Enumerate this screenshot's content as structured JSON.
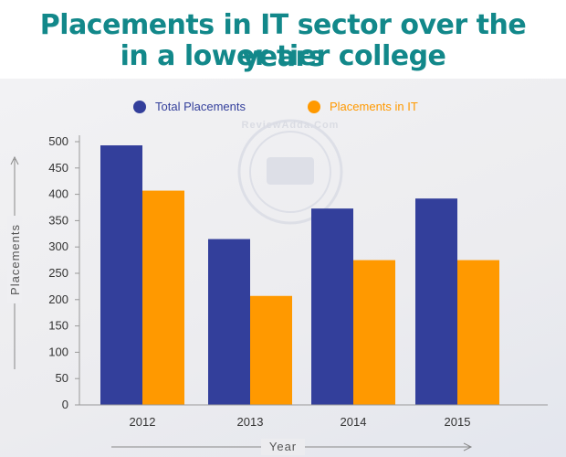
{
  "chart_data": {
    "type": "bar",
    "title_lines": [
      "Placements  in IT sector over the years",
      "in a lower tier college"
    ],
    "categories": [
      "2012",
      "2013",
      "2014",
      "2015"
    ],
    "series": [
      {
        "name": "Total Placements",
        "values": [
          493,
          315,
          373,
          392
        ],
        "color": "#333f9b"
      },
      {
        "name": "Placements in IT",
        "values": [
          407,
          207,
          275,
          275
        ],
        "color": "#ff9900"
      }
    ],
    "xlabel": "Year",
    "ylabel": "Placements",
    "ylim": [
      0,
      500
    ],
    "yticks": [
      0,
      50,
      100,
      150,
      200,
      250,
      300,
      350,
      400,
      450,
      500
    ],
    "grid": false,
    "legend_position": "top",
    "watermark": "ReviewAdda.Com"
  }
}
